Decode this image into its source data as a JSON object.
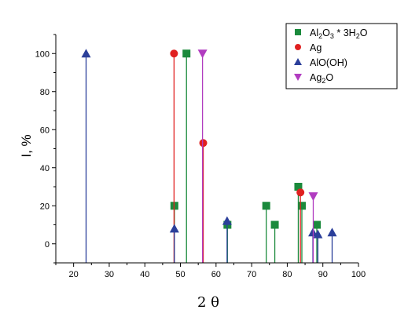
{
  "chart_data": {
    "type": "stem",
    "xlabel": "2 θ",
    "ylabel": "I, %",
    "xlim": [
      15,
      100
    ],
    "ylim": [
      -10,
      110
    ],
    "xticks": [
      20,
      30,
      40,
      50,
      60,
      70,
      80,
      90,
      100
    ],
    "yticks": [
      0,
      20,
      40,
      60,
      80,
      100
    ],
    "grid": false,
    "legend_position": "top-right",
    "series": [
      {
        "name": "Al2O3 * 3H2O",
        "legend": {
          "parts": [
            [
              "Al",
              ""
            ],
            [
              "2",
              "sub"
            ],
            [
              "O",
              ""
            ],
            [
              "3",
              "sub"
            ],
            [
              " * 3H",
              ""
            ],
            [
              "2",
              "sub"
            ],
            [
              "O",
              ""
            ]
          ]
        },
        "marker": "square",
        "color": "#1b8a3c",
        "points": [
          [
            48.3,
            20
          ],
          [
            51.7,
            100
          ],
          [
            63.2,
            10
          ],
          [
            74.1,
            20
          ],
          [
            76.5,
            10
          ],
          [
            83.1,
            30
          ],
          [
            84.1,
            20
          ],
          [
            88.3,
            10
          ]
        ]
      },
      {
        "name": "Ag",
        "legend": {
          "parts": [
            [
              "Ag",
              ""
            ]
          ]
        },
        "marker": "circle",
        "color": "#e02020",
        "points": [
          [
            48.2,
            100
          ],
          [
            56.4,
            53
          ],
          [
            83.7,
            27
          ]
        ]
      },
      {
        "name": "AlO(OH)",
        "legend": {
          "parts": [
            [
              "AlO(OH)",
              ""
            ]
          ]
        },
        "marker": "triangle-up",
        "color": "#2b3f9a",
        "points": [
          [
            23.5,
            100
          ],
          [
            48.3,
            8
          ],
          [
            63.1,
            12
          ],
          [
            87.2,
            6
          ],
          [
            88.6,
            5
          ],
          [
            92.6,
            6
          ]
        ]
      },
      {
        "name": "Ag2O",
        "legend": {
          "parts": [
            [
              "Ag",
              ""
            ],
            [
              "2",
              "sub"
            ],
            [
              "O",
              ""
            ]
          ]
        },
        "marker": "triangle-down",
        "color": "#b13cc0",
        "points": [
          [
            56.2,
            100
          ],
          [
            87.3,
            25
          ]
        ]
      }
    ]
  }
}
